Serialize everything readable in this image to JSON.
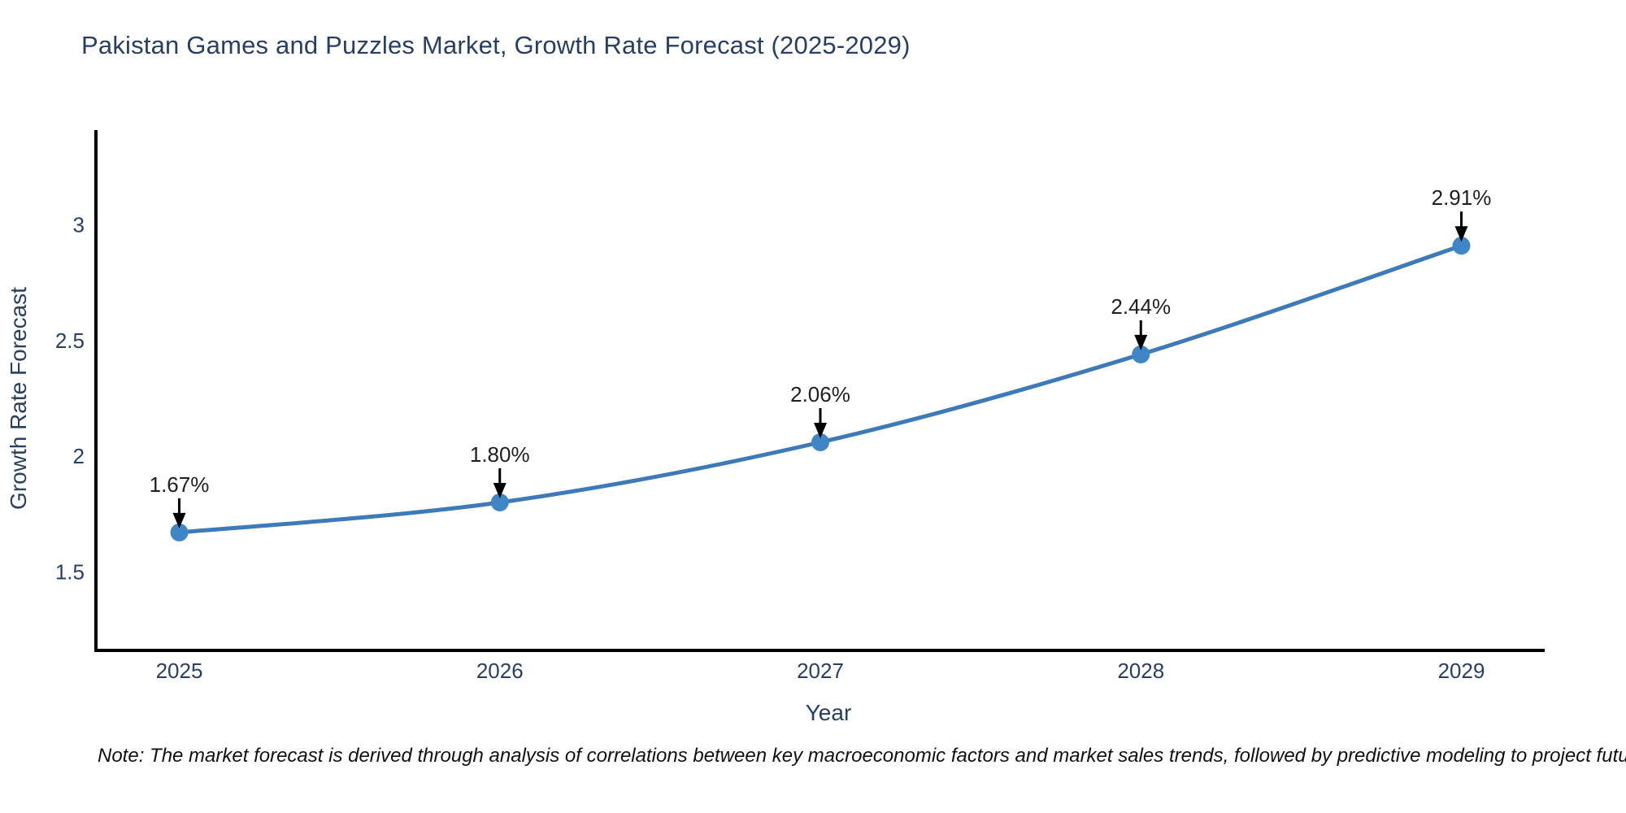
{
  "header": {
    "title": "Pakistan Games and Puzzles Market, Growth Rate Forecast (2025-2029)"
  },
  "note": {
    "text": "Note: The market forecast is derived through analysis of correlations between key macroeconomic factors and market sales trends, followed by predictive modeling to project future sales"
  },
  "colors": {
    "title_text": "#2a3f5f",
    "tick_text": "#2a3f5f",
    "axis_line": "#000000",
    "series_line": "#3d7ab7",
    "marker_fill": "#3f86c6",
    "annotation_text": "#1f1f1f",
    "annotation_arrow": "#000000",
    "background": "#ffffff"
  },
  "chart_data": {
    "type": "line",
    "title": "Pakistan Games and Puzzles Market, Growth Rate Forecast (2025-2029)",
    "xlabel": "Year",
    "ylabel": "Growth Rate Forecast",
    "x": [
      2025,
      2026,
      2027,
      2028,
      2029
    ],
    "y": [
      1.67,
      1.8,
      2.06,
      2.44,
      2.91
    ],
    "point_labels": [
      "1.67%",
      "1.80%",
      "2.06%",
      "2.44%",
      "2.91%"
    ],
    "xtick_labels": [
      "2025",
      "2026",
      "2027",
      "2028",
      "2029"
    ],
    "xticks": [
      2025,
      2026,
      2027,
      2028,
      2029
    ],
    "ytick_labels": [
      "1.5",
      "2",
      "2.5",
      "3"
    ],
    "yticks": [
      1.5,
      2.0,
      2.5,
      3.0
    ],
    "xlim": [
      2024.74,
      2029.26
    ],
    "ylim": [
      1.16,
      3.41
    ],
    "grid": false,
    "legend": false,
    "line_shape": "spline",
    "annotations_have_arrows": true
  }
}
